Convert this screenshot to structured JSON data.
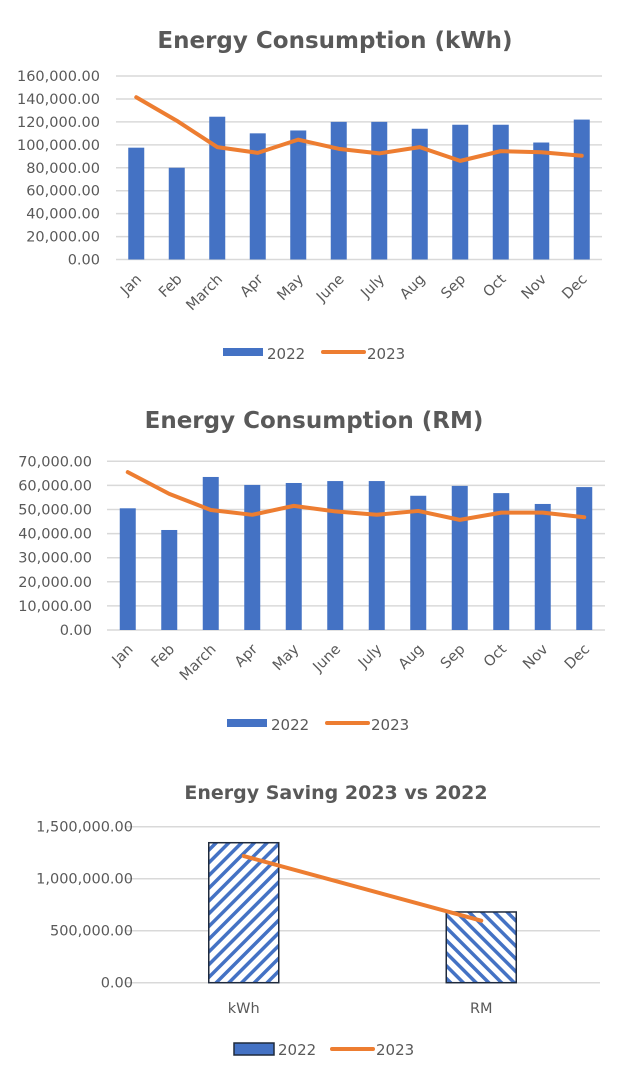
{
  "colors": {
    "bar_2022": "#4472c4",
    "line_2023": "#ed7d31",
    "text": "#595959",
    "grid": "#d9d9d9",
    "bar_outline": "#1f2a3c"
  },
  "chart_data": [
    {
      "type": "bar",
      "title": "Energy Consumption (kWh)",
      "xlabel": "",
      "ylabel": "",
      "categories": [
        "Jan",
        "Feb",
        "March",
        "Apr",
        "May",
        "June",
        "July",
        "Aug",
        "Sep",
        "Oct",
        "Nov",
        "Dec"
      ],
      "ylim": [
        0,
        160000
      ],
      "yticks": [
        "0.00",
        "20,000.00",
        "40,000.00",
        "60,000.00",
        "80,000.00",
        "100,000.00",
        "120,000.00",
        "140,000.00",
        "160,000.00"
      ],
      "grid": true,
      "legend": "bottom",
      "series": [
        {
          "name": "2022",
          "kind": "bar",
          "values": [
            97500,
            80000,
            124500,
            110000,
            112500,
            120000,
            120000,
            114000,
            117500,
            117500,
            102000,
            122000
          ]
        },
        {
          "name": "2023",
          "kind": "line",
          "values": [
            141500,
            121000,
            98000,
            93000,
            104500,
            96500,
            92500,
            98000,
            86000,
            94500,
            93500,
            90500
          ]
        }
      ]
    },
    {
      "type": "bar",
      "title": "Energy Consumption (RM)",
      "xlabel": "",
      "ylabel": "",
      "categories": [
        "Jan",
        "Feb",
        "March",
        "Apr",
        "May",
        "June",
        "July",
        "Aug",
        "Sep",
        "Oct",
        "Nov",
        "Dec"
      ],
      "ylim": [
        0,
        70000
      ],
      "yticks": [
        "0.00",
        "10,000.00",
        "20,000.00",
        "30,000.00",
        "40,000.00",
        "50,000.00",
        "60,000.00",
        "70,000.00"
      ],
      "grid": true,
      "legend": "bottom",
      "series": [
        {
          "name": "2022",
          "kind": "bar",
          "values": [
            50500,
            41500,
            63500,
            60200,
            61000,
            61800,
            61800,
            55700,
            59800,
            56800,
            52300,
            59300
          ]
        },
        {
          "name": "2023",
          "kind": "line",
          "values": [
            65500,
            56500,
            49800,
            47800,
            51500,
            49200,
            47800,
            49400,
            45700,
            48700,
            48700,
            46800
          ]
        }
      ]
    },
    {
      "type": "bar",
      "title": "Energy Saving 2023 vs 2022",
      "xlabel": "",
      "ylabel": "",
      "categories": [
        "kWh",
        "RM"
      ],
      "ylim": [
        0,
        1500000
      ],
      "yticks": [
        "0.00",
        "500,000.00",
        "1,000,000.00",
        "1,500,000.00"
      ],
      "grid": true,
      "legend": "bottom",
      "series": [
        {
          "name": "2022",
          "kind": "bar",
          "pattern": "hatched",
          "values": [
            1346000,
            680000
          ]
        },
        {
          "name": "2023",
          "kind": "line",
          "values": [
            1218000,
            596000
          ]
        }
      ]
    }
  ]
}
